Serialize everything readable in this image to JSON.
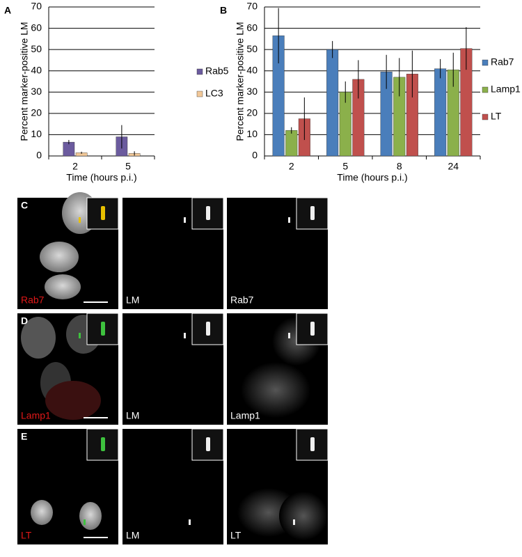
{
  "chart_data": [
    {
      "type": "bar",
      "panel_label": "A",
      "ylabel": "Percent marker-positive LM",
      "xlabel": "Time (hours p.i.)",
      "categories": [
        "2",
        "5"
      ],
      "series": [
        {
          "name": "Rab5",
          "color": "#6b5b9e",
          "values": [
            6.5,
            9
          ],
          "errors": [
            1,
            5.5
          ]
        },
        {
          "name": "LC3",
          "color": "#f2c898",
          "values": [
            1.5,
            1.2
          ],
          "errors": [
            0.5,
            1
          ]
        }
      ],
      "ylim": [
        0,
        70
      ],
      "yticks": [
        0,
        10,
        20,
        30,
        40,
        50,
        60,
        70
      ],
      "grid": true,
      "legend": "right"
    },
    {
      "type": "bar",
      "panel_label": "B",
      "ylabel": "Percent marker-positive LM",
      "xlabel": "Time (hours p.i.)",
      "categories": [
        "2",
        "5",
        "8",
        "24"
      ],
      "series": [
        {
          "name": "Rab7",
          "color": "#4a7ebb",
          "values": [
            56.5,
            50,
            39.5,
            41
          ],
          "errors": [
            13,
            4,
            8,
            4.5
          ]
        },
        {
          "name": "Lamp1",
          "color": "#8bb04b",
          "values": [
            12,
            30,
            37,
            40.5
          ],
          "errors": [
            1.5,
            5,
            9,
            8
          ]
        },
        {
          "name": "LT",
          "color": "#c0504d",
          "values": [
            17.5,
            36,
            38.5,
            50.5
          ],
          "errors": [
            10,
            9,
            11,
            10
          ]
        }
      ],
      "ylim": [
        0,
        70
      ],
      "yticks": [
        0,
        10,
        20,
        30,
        40,
        50,
        60,
        70
      ],
      "grid": true,
      "legend": "right"
    }
  ],
  "micrographs": [
    {
      "label": "C",
      "panels": [
        "Rab7",
        "LM",
        "Rab7"
      ]
    },
    {
      "label": "D",
      "panels": [
        "Lamp1",
        "LM",
        "Lamp1"
      ]
    },
    {
      "label": "E",
      "panels": [
        "LT",
        "LM",
        "LT"
      ]
    }
  ]
}
